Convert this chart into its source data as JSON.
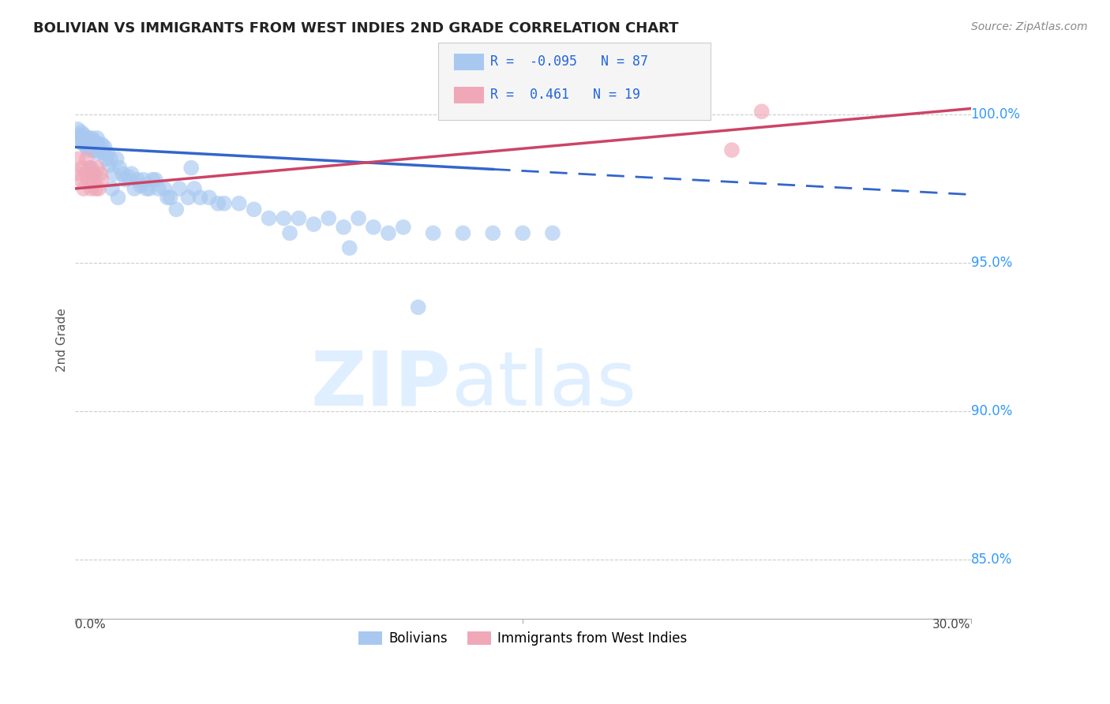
{
  "title": "BOLIVIAN VS IMMIGRANTS FROM WEST INDIES 2ND GRADE CORRELATION CHART",
  "source": "Source: ZipAtlas.com",
  "ylabel": "2nd Grade",
  "xlim": [
    0.0,
    30.0
  ],
  "ylim": [
    83.0,
    101.8
  ],
  "yticks": [
    85.0,
    90.0,
    95.0,
    100.0
  ],
  "ytick_labels": [
    "85.0%",
    "90.0%",
    "95.0%",
    "100.0%"
  ],
  "blue_R": -0.095,
  "blue_N": 87,
  "pink_R": 0.461,
  "pink_N": 19,
  "blue_color": "#a8c8f0",
  "pink_color": "#f0a8b8",
  "blue_line_color": "#3366cc",
  "pink_line_color": "#cc4466",
  "legend_R_color": "#2266dd",
  "blue_scatter_x": [
    0.1,
    0.15,
    0.2,
    0.22,
    0.25,
    0.28,
    0.3,
    0.32,
    0.35,
    0.38,
    0.4,
    0.42,
    0.45,
    0.48,
    0.5,
    0.52,
    0.55,
    0.58,
    0.6,
    0.62,
    0.65,
    0.68,
    0.7,
    0.72,
    0.75,
    0.78,
    0.8,
    0.85,
    0.9,
    0.95,
    1.0,
    1.05,
    1.1,
    1.15,
    1.2,
    1.3,
    1.4,
    1.5,
    1.6,
    1.7,
    1.8,
    1.9,
    2.0,
    2.1,
    2.2,
    2.4,
    2.6,
    2.8,
    3.0,
    3.2,
    3.5,
    3.8,
    4.0,
    4.2,
    4.5,
    4.8,
    5.0,
    5.5,
    6.0,
    6.5,
    7.0,
    7.5,
    8.0,
    8.5,
    9.0,
    9.5,
    10.0,
    10.5,
    11.0,
    12.0,
    13.0,
    14.0,
    15.0,
    16.0,
    2.3,
    2.5,
    3.1,
    3.4,
    0.55,
    0.65,
    1.25,
    1.45,
    2.7,
    3.9,
    7.2,
    9.2,
    11.5
  ],
  "blue_scatter_y": [
    99.5,
    99.2,
    99.3,
    99.4,
    99.1,
    99.0,
    99.2,
    99.3,
    99.0,
    99.1,
    98.9,
    99.0,
    98.8,
    99.2,
    99.0,
    99.1,
    98.9,
    99.2,
    98.8,
    99.0,
    99.1,
    98.9,
    99.0,
    98.8,
    99.2,
    98.7,
    99.0,
    98.8,
    99.0,
    98.7,
    98.9,
    98.5,
    98.7,
    98.3,
    98.5,
    98.0,
    98.5,
    98.2,
    98.0,
    97.8,
    97.9,
    98.0,
    97.5,
    97.8,
    97.6,
    97.5,
    97.8,
    97.5,
    97.5,
    97.2,
    97.5,
    97.2,
    97.5,
    97.2,
    97.2,
    97.0,
    97.0,
    97.0,
    96.8,
    96.5,
    96.5,
    96.5,
    96.3,
    96.5,
    96.2,
    96.5,
    96.2,
    96.0,
    96.2,
    96.0,
    96.0,
    96.0,
    96.0,
    96.0,
    97.8,
    97.5,
    97.2,
    96.8,
    98.2,
    98.0,
    97.5,
    97.2,
    97.8,
    98.2,
    96.0,
    95.5,
    93.5
  ],
  "pink_scatter_x": [
    0.1,
    0.15,
    0.2,
    0.25,
    0.3,
    0.35,
    0.4,
    0.45,
    0.5,
    0.55,
    0.6,
    0.65,
    0.7,
    0.75,
    0.8,
    0.85,
    0.9,
    23.0,
    22.0
  ],
  "pink_scatter_y": [
    98.5,
    98.0,
    97.8,
    98.2,
    97.5,
    98.0,
    98.5,
    97.8,
    98.2,
    97.5,
    98.0,
    97.8,
    97.5,
    98.2,
    97.5,
    98.0,
    97.8,
    100.1,
    98.8
  ],
  "blue_line_x0": 0.0,
  "blue_line_y0": 98.9,
  "blue_line_x1": 30.0,
  "blue_line_y1": 97.3,
  "blue_solid_x1": 14.0,
  "pink_line_x0": 0.0,
  "pink_line_y0": 97.5,
  "pink_line_x1": 30.0,
  "pink_line_y1": 100.2
}
